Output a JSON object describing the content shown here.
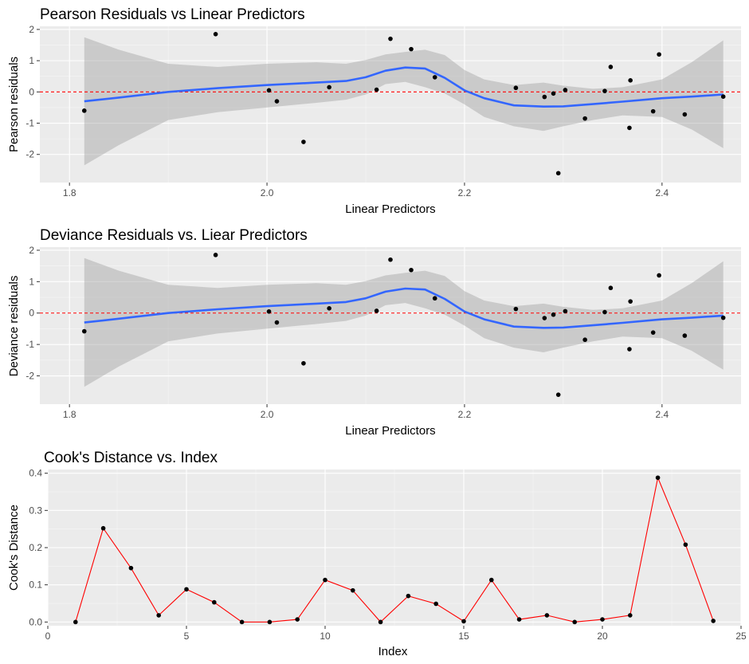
{
  "chart_data": [
    {
      "type": "scatter",
      "title": "Pearson Residuals vs Linear Predictors",
      "xlabel": "Linear Predictors",
      "ylabel": "Pearson residuals",
      "xlim": [
        1.77,
        2.48
      ],
      "ylim": [
        -2.9,
        2.1
      ],
      "x_ticks": [
        1.8,
        2.0,
        2.2,
        2.4
      ],
      "x_tick_labels": [
        "1.8",
        "2.0",
        "2.2",
        "2.4"
      ],
      "y_ticks": [
        -2,
        -1,
        0,
        1,
        2
      ],
      "y_tick_labels": [
        "-2",
        "-1",
        "0",
        "1",
        "2"
      ],
      "grid": true,
      "reference_line": {
        "y": 0,
        "style": "dashed",
        "color": "#ff0000"
      },
      "points": [
        {
          "x": 1.815,
          "y": -0.6
        },
        {
          "x": 1.948,
          "y": 1.85
        },
        {
          "x": 2.002,
          "y": 0.05
        },
        {
          "x": 2.01,
          "y": -0.3
        },
        {
          "x": 2.037,
          "y": -1.6
        },
        {
          "x": 2.063,
          "y": 0.15
        },
        {
          "x": 2.111,
          "y": 0.07
        },
        {
          "x": 2.125,
          "y": 1.7
        },
        {
          "x": 2.146,
          "y": 1.37
        },
        {
          "x": 2.17,
          "y": 0.47
        },
        {
          "x": 2.252,
          "y": 0.13
        },
        {
          "x": 2.281,
          "y": -0.16
        },
        {
          "x": 2.29,
          "y": -0.05
        },
        {
          "x": 2.295,
          "y": -2.6
        },
        {
          "x": 2.302,
          "y": 0.06
        },
        {
          "x": 2.322,
          "y": -0.85
        },
        {
          "x": 2.342,
          "y": 0.03
        },
        {
          "x": 2.348,
          "y": 0.8
        },
        {
          "x": 2.367,
          "y": -1.15
        },
        {
          "x": 2.368,
          "y": 0.37
        },
        {
          "x": 2.391,
          "y": -0.62
        },
        {
          "x": 2.397,
          "y": 1.2
        },
        {
          "x": 2.423,
          "y": -0.72
        },
        {
          "x": 2.462,
          "y": -0.15
        }
      ],
      "smooth": {
        "x": [
          1.815,
          1.85,
          1.9,
          1.95,
          2.0,
          2.05,
          2.08,
          2.1,
          2.12,
          2.14,
          2.16,
          2.18,
          2.2,
          2.22,
          2.25,
          2.28,
          2.3,
          2.33,
          2.36,
          2.4,
          2.43,
          2.462
        ],
        "y": [
          -0.3,
          -0.18,
          0.0,
          0.12,
          0.22,
          0.3,
          0.35,
          0.47,
          0.68,
          0.78,
          0.75,
          0.45,
          0.05,
          -0.2,
          -0.43,
          -0.47,
          -0.46,
          -0.39,
          -0.31,
          -0.2,
          -0.15,
          -0.08
        ],
        "lower": [
          -2.35,
          -1.7,
          -0.9,
          -0.65,
          -0.5,
          -0.35,
          -0.25,
          -0.08,
          0.25,
          0.32,
          0.15,
          -0.05,
          -0.4,
          -0.8,
          -1.1,
          -1.25,
          -1.1,
          -0.9,
          -0.75,
          -0.8,
          -1.2,
          -1.8
        ],
        "upper": [
          1.75,
          1.35,
          0.9,
          0.8,
          0.9,
          0.95,
          0.9,
          1.02,
          1.2,
          1.28,
          1.35,
          1.18,
          0.7,
          0.4,
          0.22,
          0.3,
          0.2,
          0.1,
          0.15,
          0.4,
          0.95,
          1.65
        ]
      }
    },
    {
      "type": "scatter",
      "title": "Deviance Residuals vs. Liear Predictors",
      "xlabel": "Linear Predictors",
      "ylabel": "Deviance residuals",
      "xlim": [
        1.77,
        2.48
      ],
      "ylim": [
        -2.9,
        2.1
      ],
      "x_ticks": [
        1.8,
        2.0,
        2.2,
        2.4
      ],
      "x_tick_labels": [
        "1.8",
        "2.0",
        "2.2",
        "2.4"
      ],
      "y_ticks": [
        -2,
        -1,
        0,
        1,
        2
      ],
      "y_tick_labels": [
        "-2",
        "-1",
        "0",
        "1",
        "2"
      ],
      "grid": true,
      "reference_line": {
        "y": 0,
        "style": "dashed",
        "color": "#ff0000"
      },
      "points": [
        {
          "x": 1.815,
          "y": -0.58
        },
        {
          "x": 1.948,
          "y": 1.85
        },
        {
          "x": 2.002,
          "y": 0.05
        },
        {
          "x": 2.01,
          "y": -0.3
        },
        {
          "x": 2.037,
          "y": -1.6
        },
        {
          "x": 2.063,
          "y": 0.15
        },
        {
          "x": 2.111,
          "y": 0.07
        },
        {
          "x": 2.125,
          "y": 1.7
        },
        {
          "x": 2.146,
          "y": 1.37
        },
        {
          "x": 2.17,
          "y": 0.47
        },
        {
          "x": 2.252,
          "y": 0.13
        },
        {
          "x": 2.281,
          "y": -0.16
        },
        {
          "x": 2.29,
          "y": -0.05
        },
        {
          "x": 2.295,
          "y": -2.6
        },
        {
          "x": 2.302,
          "y": 0.06
        },
        {
          "x": 2.322,
          "y": -0.85
        },
        {
          "x": 2.342,
          "y": 0.03
        },
        {
          "x": 2.348,
          "y": 0.8
        },
        {
          "x": 2.367,
          "y": -1.15
        },
        {
          "x": 2.368,
          "y": 0.37
        },
        {
          "x": 2.391,
          "y": -0.62
        },
        {
          "x": 2.397,
          "y": 1.2
        },
        {
          "x": 2.423,
          "y": -0.72
        },
        {
          "x": 2.462,
          "y": -0.15
        }
      ],
      "smooth": {
        "x": [
          1.815,
          1.85,
          1.9,
          1.95,
          2.0,
          2.05,
          2.08,
          2.1,
          2.12,
          2.14,
          2.16,
          2.18,
          2.2,
          2.22,
          2.25,
          2.28,
          2.3,
          2.33,
          2.36,
          2.4,
          2.43,
          2.462
        ],
        "y": [
          -0.3,
          -0.18,
          0.0,
          0.12,
          0.22,
          0.3,
          0.35,
          0.47,
          0.68,
          0.78,
          0.75,
          0.45,
          0.05,
          -0.2,
          -0.43,
          -0.47,
          -0.46,
          -0.39,
          -0.31,
          -0.2,
          -0.15,
          -0.08
        ],
        "lower": [
          -2.35,
          -1.7,
          -0.9,
          -0.65,
          -0.5,
          -0.35,
          -0.25,
          -0.08,
          0.25,
          0.32,
          0.15,
          -0.05,
          -0.4,
          -0.8,
          -1.1,
          -1.25,
          -1.1,
          -0.9,
          -0.75,
          -0.8,
          -1.2,
          -1.8
        ],
        "upper": [
          1.75,
          1.35,
          0.9,
          0.8,
          0.9,
          0.95,
          0.9,
          1.02,
          1.2,
          1.28,
          1.35,
          1.18,
          0.7,
          0.4,
          0.22,
          0.3,
          0.2,
          0.1,
          0.15,
          0.4,
          0.95,
          1.65
        ]
      }
    },
    {
      "type": "line",
      "title": "Cook's Distance vs. Index",
      "xlabel": "Index",
      "ylabel": "Cook's Distance",
      "xlim": [
        0,
        25
      ],
      "ylim": [
        -0.01,
        0.41
      ],
      "x_ticks": [
        0,
        5,
        10,
        15,
        20,
        25
      ],
      "x_tick_labels": [
        "0",
        "5",
        "10",
        "15",
        "20",
        "25"
      ],
      "y_ticks": [
        0.0,
        0.1,
        0.2,
        0.3,
        0.4
      ],
      "y_tick_labels": [
        "0.0",
        "0.1",
        "0.2",
        "0.3",
        "0.4"
      ],
      "grid": true,
      "line_color": "#ff0000",
      "x": [
        1,
        2,
        3,
        4,
        5,
        6,
        7,
        8,
        9,
        10,
        11,
        12,
        13,
        14,
        15,
        16,
        17,
        18,
        19,
        20,
        21,
        22,
        23,
        24
      ],
      "values": [
        0.0,
        0.252,
        0.145,
        0.018,
        0.088,
        0.053,
        0.0,
        0.0,
        0.007,
        0.113,
        0.085,
        0.0,
        0.07,
        0.049,
        0.002,
        0.113,
        0.007,
        0.018,
        0.0,
        0.007,
        0.018,
        0.388,
        0.208,
        0.003
      ]
    }
  ],
  "colors": {
    "panel_background": "#ebebeb",
    "grid_major": "#ffffff",
    "point": "#000000",
    "smooth_line": "#3366ff",
    "ribbon": "#999999",
    "tick_text": "#4d4d4d"
  }
}
